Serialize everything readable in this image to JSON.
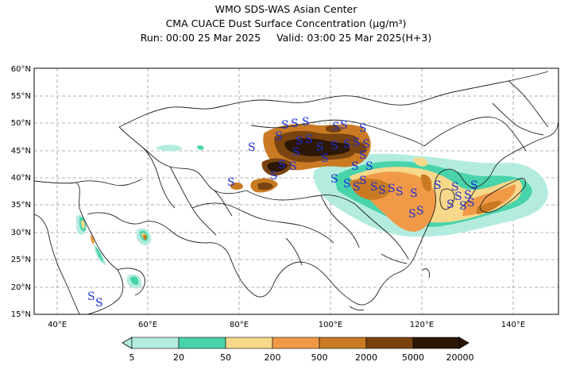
{
  "header": {
    "line1": "WMO SDS-WAS Asian Center",
    "line2": "CMA CUACE Dust Surface Concentration (μg/m³)",
    "run_label": "Run: 00:00 25 Mar 2025",
    "valid_label": "Valid: 03:00 25 Mar 2025(H+3)"
  },
  "map": {
    "lon_range": [
      35,
      150
    ],
    "lat_range": [
      15,
      60
    ],
    "lat_ticks": [
      "15°N",
      "20°N",
      "25°N",
      "30°N",
      "35°N",
      "40°N",
      "45°N",
      "50°N",
      "55°N",
      "60°N"
    ],
    "lon_ticks": [
      "40°E",
      "60°E",
      "80°E",
      "100°E",
      "120°E",
      "140°E"
    ],
    "grid": "dashed",
    "dust_storm_symbol": "S"
  },
  "colorbar": {
    "labels": [
      "5",
      "20",
      "50",
      "200",
      "500",
      "2000",
      "5000",
      "20000"
    ],
    "colors": [
      "#b3ecdf",
      "#48d3ab",
      "#f7d88a",
      "#f09a48",
      "#c97a23",
      "#7a4410",
      "#2c1604"
    ]
  }
}
